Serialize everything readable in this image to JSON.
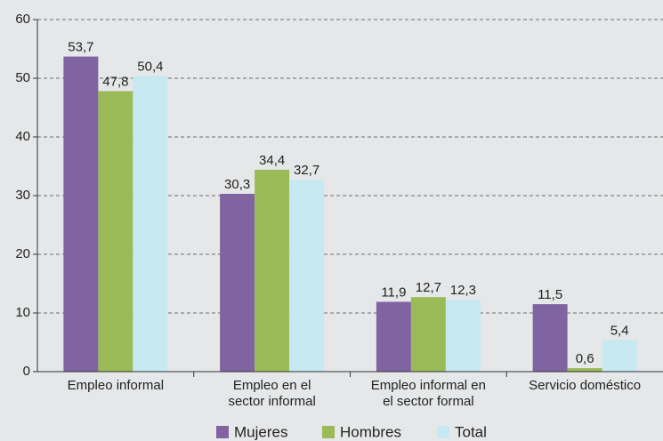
{
  "chart_data": {
    "type": "bar",
    "categories": [
      "Empleo informal",
      "Empleo en el\nsector informal",
      "Empleo informal en\nel sector formal",
      "Servicio doméstico"
    ],
    "series": [
      {
        "name": "Mujeres",
        "color": "#8064a2",
        "values": [
          53.7,
          30.3,
          11.9,
          11.5
        ],
        "value_labels": [
          "53,7",
          "30,3",
          "11,9",
          "11,5"
        ]
      },
      {
        "name": "Hombres",
        "color": "#9bbb59",
        "values": [
          47.8,
          34.4,
          12.7,
          0.6
        ],
        "value_labels": [
          "47,8",
          "34,4",
          "12,7",
          "0,6"
        ]
      },
      {
        "name": "Total",
        "color": "#c6e9f2",
        "values": [
          50.4,
          32.7,
          12.3,
          5.4
        ],
        "value_labels": [
          "50,4",
          "32,7",
          "12,3",
          "5,4"
        ]
      }
    ],
    "ylim": [
      0,
      60
    ],
    "yticks": [
      0,
      10,
      20,
      30,
      40,
      50,
      60
    ],
    "grid": true,
    "legend": "bottom"
  }
}
